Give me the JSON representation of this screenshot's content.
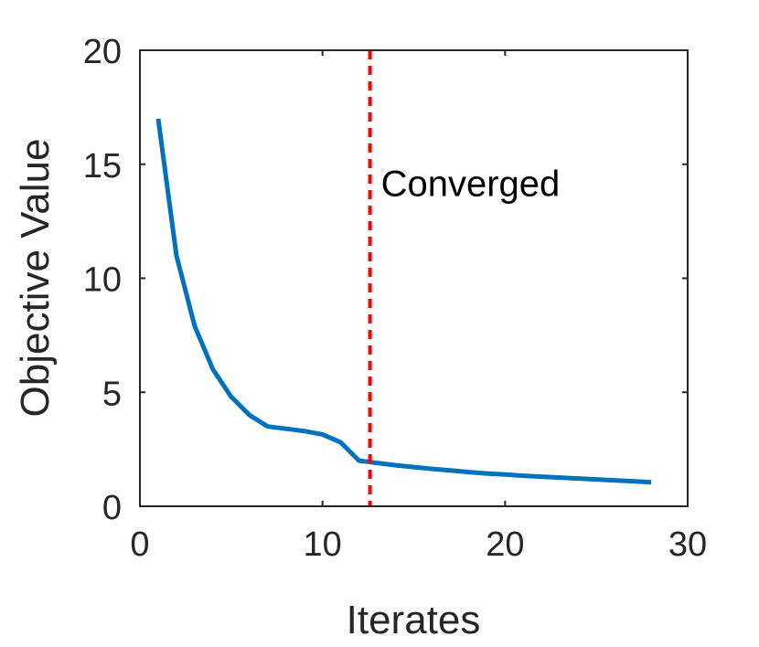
{
  "chart_data": {
    "type": "line",
    "xlabel": "Iterates",
    "ylabel": "Objective Value",
    "xlim": [
      0,
      30
    ],
    "ylim": [
      0,
      20
    ],
    "xticks": [
      0,
      10,
      20,
      30
    ],
    "yticks": [
      0,
      5,
      10,
      15,
      20
    ],
    "grid": false,
    "series": [
      {
        "color": "#0072bd",
        "x": [
          1,
          2,
          3,
          4,
          5,
          6,
          7,
          8,
          9,
          10,
          11,
          12,
          13,
          14,
          15,
          16,
          17,
          18,
          19,
          20,
          21,
          22,
          23,
          24,
          25,
          26,
          27,
          28
        ],
        "y": [
          17.0,
          11.0,
          7.9,
          6.0,
          4.8,
          4.0,
          3.5,
          3.4,
          3.3,
          3.15,
          2.8,
          2.0,
          1.9,
          1.8,
          1.72,
          1.64,
          1.57,
          1.5,
          1.44,
          1.39,
          1.34,
          1.3,
          1.26,
          1.22,
          1.18,
          1.14,
          1.1,
          1.05
        ]
      }
    ],
    "vline": {
      "x": 12.6,
      "color": "#ff0000",
      "style": "dashed"
    },
    "annotations": [
      {
        "text": "Converged",
        "x": 13.2,
        "y": 13.6
      }
    ]
  }
}
